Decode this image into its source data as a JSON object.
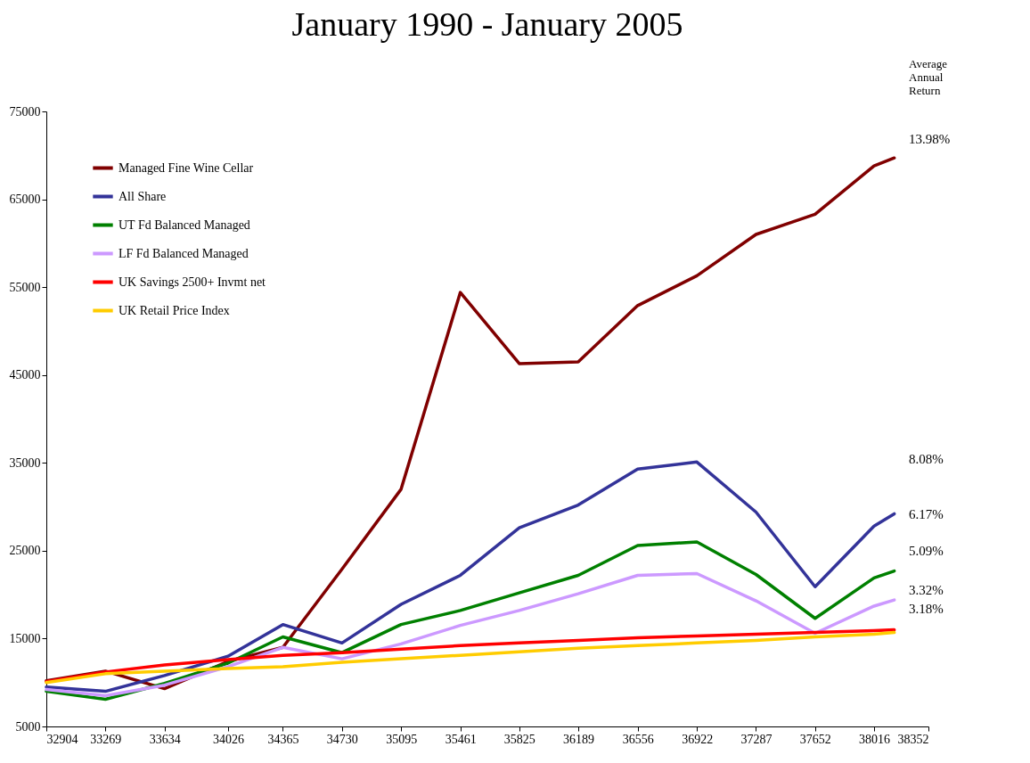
{
  "chart_data": {
    "type": "line",
    "title": "January 1990 - January 2005",
    "x": [
      32904,
      33269,
      33634,
      34026,
      34365,
      34730,
      35095,
      35461,
      35825,
      36189,
      36556,
      36922,
      37287,
      37652,
      38016,
      38141
    ],
    "xlim": [
      32904,
      38352
    ],
    "xticks": [
      32904,
      33269,
      33634,
      34026,
      34365,
      34730,
      35095,
      35461,
      35825,
      36189,
      36556,
      36922,
      37287,
      37652,
      38016,
      38352
    ],
    "ylim": [
      5000,
      75000
    ],
    "yticks": [
      5000,
      15000,
      25000,
      35000,
      45000,
      55000,
      65000,
      75000
    ],
    "grid": false,
    "legend": "top left",
    "series": [
      {
        "name": "Managed Fine Wine Cellar",
        "color": "#800000",
        "values": [
          10200,
          11300,
          9300,
          12400,
          14000,
          22900,
          32000,
          54400,
          46300,
          46500,
          52900,
          56300,
          61000,
          63300,
          68800,
          69700
        ]
      },
      {
        "name": "All Share",
        "color": "#333399",
        "values": [
          9500,
          9000,
          10800,
          13000,
          16600,
          14500,
          18900,
          22200,
          27600,
          30200,
          34300,
          35100,
          29400,
          20900,
          27800,
          29200
        ]
      },
      {
        "name": "UT Fd Balanced Managed",
        "color": "#008000",
        "values": [
          9000,
          8100,
          9900,
          12200,
          15200,
          13400,
          16600,
          18200,
          20200,
          22200,
          25600,
          26000,
          22300,
          17300,
          21900,
          22700
        ]
      },
      {
        "name": "LF Fd Balanced Managed",
        "color": "#cc99ff",
        "values": [
          9200,
          8500,
          9700,
          11800,
          14000,
          12700,
          14400,
          16500,
          18200,
          20100,
          22200,
          22400,
          19300,
          15600,
          18700,
          19400
        ]
      },
      {
        "name": "UK Savings 2500+ Invmt net",
        "color": "#ff0000",
        "values": [
          10100,
          11200,
          12000,
          12600,
          13100,
          13400,
          13800,
          14200,
          14500,
          14800,
          15100,
          15300,
          15500,
          15700,
          15900,
          16000
        ]
      },
      {
        "name": "UK Retail Price Index",
        "color": "#ffcc00",
        "values": [
          10000,
          11000,
          11300,
          11600,
          11800,
          12300,
          12700,
          13100,
          13500,
          13900,
          14200,
          14500,
          14800,
          15200,
          15500,
          15700
        ]
      }
    ],
    "annotations": [
      "Average Annual Return",
      "13.98%",
      "8.08%",
      "6.17%",
      "5.09%",
      "3.32%",
      "3.18%"
    ]
  }
}
